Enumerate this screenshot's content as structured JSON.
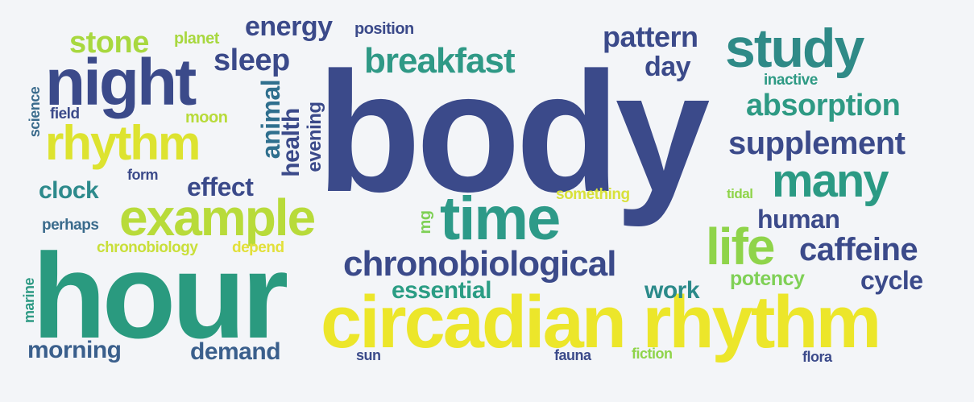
{
  "words": [
    {
      "text": "body",
      "color": "#3b4a8a"
    },
    {
      "text": "hour",
      "color": "#2a9a7f"
    },
    {
      "text": "circadian rhythm",
      "color": "#ece62a"
    },
    {
      "text": "night",
      "color": "#3b4a8a"
    },
    {
      "text": "study",
      "color": "#2f8a87"
    },
    {
      "text": "example",
      "color": "#b8db3a"
    },
    {
      "text": "time",
      "color": "#2d9a88"
    },
    {
      "text": "rhythm",
      "color": "#dde32f"
    },
    {
      "text": "breakfast",
      "color": "#2f9986"
    },
    {
      "text": "many",
      "color": "#2b9a84"
    },
    {
      "text": "chronobiological",
      "color": "#3b4a8a"
    },
    {
      "text": "life",
      "color": "#8fd44a"
    },
    {
      "text": "absorption",
      "color": "#2e9a84"
    },
    {
      "text": "supplement",
      "color": "#3b4a8a"
    },
    {
      "text": "caffeine",
      "color": "#3b4a8a"
    },
    {
      "text": "stone",
      "color": "#a8d83f"
    },
    {
      "text": "sleep",
      "color": "#3b4a8a"
    },
    {
      "text": "energy",
      "color": "#3b4a8a"
    },
    {
      "text": "pattern",
      "color": "#3b4a8a"
    },
    {
      "text": "day",
      "color": "#3b4a8a"
    },
    {
      "text": "human",
      "color": "#3b4a8a"
    },
    {
      "text": "cycle",
      "color": "#3b4a8a"
    },
    {
      "text": "essential",
      "color": "#2b9d84"
    },
    {
      "text": "work",
      "color": "#2b8a8a"
    },
    {
      "text": "effect",
      "color": "#3b4a8a"
    },
    {
      "text": "clock",
      "color": "#2d8a8c"
    },
    {
      "text": "morning",
      "color": "#3a5f8c"
    },
    {
      "text": "demand",
      "color": "#3a5f8c"
    },
    {
      "text": "potency",
      "color": "#7fd056"
    },
    {
      "text": "animal",
      "color": "#2f6f8e"
    },
    {
      "text": "health",
      "color": "#3b4a8a"
    },
    {
      "text": "evening",
      "color": "#3b4a8a"
    },
    {
      "text": "planet",
      "color": "#a8d83f"
    },
    {
      "text": "position",
      "color": "#3b4a8a"
    },
    {
      "text": "inactive",
      "color": "#2e9a84"
    },
    {
      "text": "science",
      "color": "#3a6b8c"
    },
    {
      "text": "field",
      "color": "#3b4a8a"
    },
    {
      "text": "moon",
      "color": "#b8db3a"
    },
    {
      "text": "form",
      "color": "#3b4a8a"
    },
    {
      "text": "perhaps",
      "color": "#3a6b8c"
    },
    {
      "text": "chronobiology",
      "color": "#c9df3a"
    },
    {
      "text": "depend",
      "color": "#e2e03a"
    },
    {
      "text": "something",
      "color": "#d8e13a"
    },
    {
      "text": "tidal",
      "color": "#8fd44a"
    },
    {
      "text": "mg",
      "color": "#7fd056"
    },
    {
      "text": "marine",
      "color": "#2e9a84"
    },
    {
      "text": "sun",
      "color": "#3b4a8a"
    },
    {
      "text": "fauna",
      "color": "#3b4a8a"
    },
    {
      "text": "fiction",
      "color": "#8fd44a"
    },
    {
      "text": "flora",
      "color": "#3b4a8a"
    }
  ]
}
